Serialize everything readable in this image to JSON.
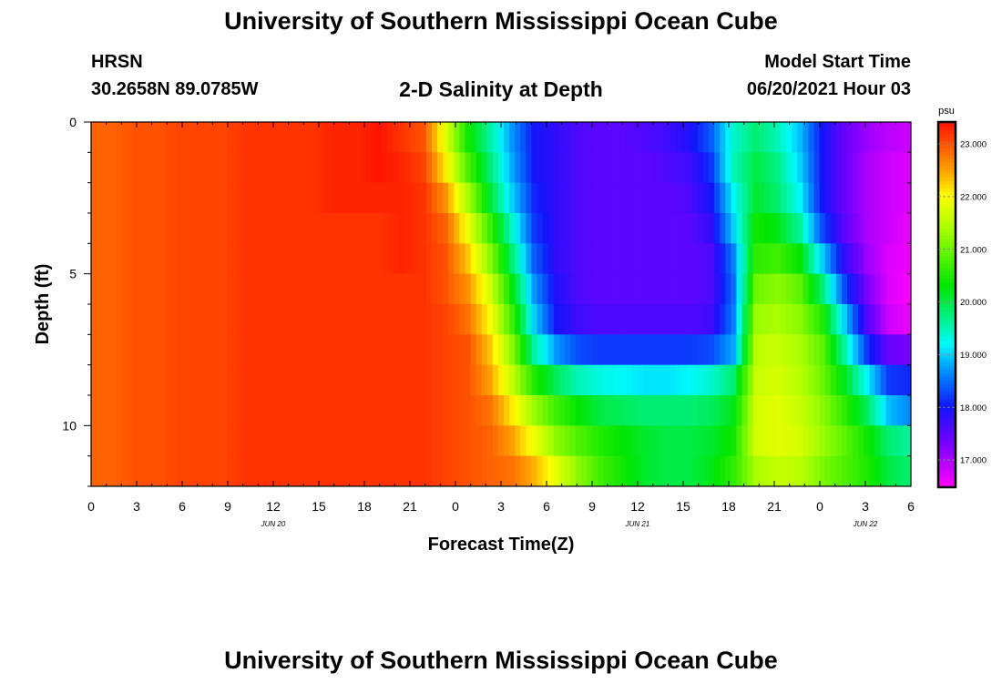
{
  "header": {
    "title_top": "University of Southern Mississippi Ocean Cube",
    "title_bottom": "University of Southern Mississippi Ocean Cube",
    "station": "HRSN",
    "coords": "30.2658N  89.0785W",
    "plot_title": "2-D Salinity at Depth",
    "model_label": "Model Start Time",
    "model_time": "06/20/2021 Hour 03"
  },
  "chart_data": {
    "type": "heatmap",
    "title": "2-D Salinity at Depth",
    "xlabel": "Forecast Time(Z)",
    "ylabel": "Depth (ft)",
    "x_hours": [
      0,
      54
    ],
    "ylim": [
      0,
      12
    ],
    "xticks": [
      "0",
      "3",
      "6",
      "9",
      "12",
      "15",
      "18",
      "21",
      "0",
      "3",
      "6",
      "9",
      "12",
      "15",
      "18",
      "21",
      "0",
      "3",
      "6"
    ],
    "date_labels": [
      {
        "hour": 12,
        "text": "JUN 20"
      },
      {
        "hour": 36,
        "text": "JUN 21"
      },
      {
        "hour": 51,
        "text": "JUN 22"
      }
    ],
    "yticks": [
      "0",
      "5",
      "10"
    ],
    "colorbar": {
      "unit": "psu",
      "min": 16.5,
      "max": 23.4,
      "ticks": [
        "23.000",
        "22.000",
        "21.000",
        "20.000",
        "19.000",
        "18.000",
        "17.000"
      ]
    },
    "depth_rows": [
      0.5,
      1.5,
      2.5,
      3.5,
      4.5,
      5.5,
      6.5,
      7.5,
      8.5,
      9.5,
      10.5,
      11.5
    ],
    "salinity_psu": [
      [
        22.9,
        22.9,
        23.0,
        23.0,
        23.1,
        23.1,
        23.1,
        23.2,
        23.2,
        23.2,
        23.2,
        23.3,
        23.3,
        23.4,
        23.2,
        23.0,
        21.8,
        20.4,
        19.6,
        18.7,
        18.0,
        17.8,
        17.6,
        17.5,
        17.5,
        17.6,
        17.7,
        17.9,
        18.4,
        19.4,
        19.8,
        19.5,
        18.9,
        18.0,
        17.4,
        17.1,
        16.9,
        16.8
      ],
      [
        22.9,
        22.9,
        23.0,
        23.0,
        23.1,
        23.1,
        23.1,
        23.2,
        23.2,
        23.2,
        23.2,
        23.3,
        23.3,
        23.4,
        23.3,
        23.1,
        22.1,
        20.8,
        19.8,
        18.8,
        18.0,
        17.8,
        17.6,
        17.5,
        17.5,
        17.5,
        17.6,
        17.7,
        18.2,
        19.5,
        20.0,
        19.7,
        19.0,
        18.0,
        17.4,
        17.0,
        16.8,
        16.7
      ],
      [
        22.9,
        22.9,
        23.0,
        23.0,
        23.1,
        23.1,
        23.1,
        23.2,
        23.2,
        23.2,
        23.2,
        23.3,
        23.3,
        23.3,
        23.3,
        23.2,
        22.6,
        21.4,
        20.1,
        19.0,
        18.1,
        17.8,
        17.6,
        17.5,
        17.5,
        17.5,
        17.5,
        17.6,
        18.0,
        19.2,
        20.1,
        19.8,
        19.2,
        18.0,
        17.4,
        17.0,
        16.8,
        16.7
      ],
      [
        22.9,
        22.9,
        23.0,
        23.0,
        23.1,
        23.1,
        23.1,
        23.2,
        23.2,
        23.2,
        23.2,
        23.2,
        23.2,
        23.2,
        23.3,
        23.2,
        22.9,
        21.9,
        20.7,
        19.4,
        18.2,
        17.8,
        17.6,
        17.5,
        17.5,
        17.5,
        17.5,
        17.5,
        17.8,
        19.0,
        20.4,
        20.2,
        19.6,
        18.3,
        17.5,
        17.0,
        16.8,
        16.6
      ],
      [
        22.9,
        22.9,
        23.0,
        23.0,
        23.1,
        23.1,
        23.1,
        23.2,
        23.2,
        23.2,
        23.2,
        23.2,
        23.2,
        23.2,
        23.3,
        23.2,
        23.0,
        22.3,
        21.2,
        19.8,
        18.4,
        17.8,
        17.6,
        17.5,
        17.5,
        17.5,
        17.5,
        17.5,
        17.6,
        18.6,
        20.6,
        20.7,
        20.3,
        19.0,
        17.8,
        17.1,
        16.7,
        16.6
      ],
      [
        22.9,
        22.9,
        23.0,
        23.0,
        23.1,
        23.1,
        23.1,
        23.2,
        23.2,
        23.2,
        23.2,
        23.2,
        23.2,
        23.2,
        23.2,
        23.2,
        23.0,
        22.6,
        21.7,
        20.3,
        18.7,
        17.9,
        17.6,
        17.5,
        17.5,
        17.5,
        17.5,
        17.5,
        17.6,
        18.5,
        21.0,
        21.2,
        20.9,
        19.8,
        18.3,
        17.3,
        16.7,
        16.5
      ],
      [
        22.9,
        22.9,
        23.0,
        23.0,
        23.1,
        23.1,
        23.1,
        23.2,
        23.2,
        23.2,
        23.2,
        23.2,
        23.2,
        23.2,
        23.2,
        23.2,
        23.1,
        22.8,
        22.0,
        20.7,
        19.0,
        18.0,
        17.7,
        17.6,
        17.6,
        17.6,
        17.6,
        17.6,
        17.7,
        18.6,
        21.3,
        21.4,
        21.2,
        20.5,
        19.0,
        17.6,
        16.8,
        16.6
      ],
      [
        22.9,
        22.9,
        23.0,
        23.0,
        23.1,
        23.1,
        23.1,
        23.2,
        23.2,
        23.2,
        23.2,
        23.2,
        23.2,
        23.2,
        23.2,
        23.2,
        23.1,
        23.0,
        22.3,
        21.2,
        19.6,
        18.7,
        18.3,
        18.2,
        18.2,
        18.2,
        18.2,
        18.2,
        18.3,
        18.8,
        21.5,
        21.6,
        21.4,
        20.9,
        19.6,
        18.2,
        17.4,
        17.3
      ],
      [
        22.9,
        22.9,
        23.0,
        23.0,
        23.1,
        23.1,
        23.1,
        23.2,
        23.2,
        23.2,
        23.2,
        23.2,
        23.2,
        23.2,
        23.2,
        23.2,
        23.1,
        23.0,
        22.5,
        21.6,
        20.5,
        19.9,
        19.5,
        19.3,
        19.2,
        19.1,
        19.1,
        19.2,
        19.4,
        19.8,
        21.6,
        21.7,
        21.5,
        21.0,
        20.2,
        19.2,
        18.2,
        18.1
      ],
      [
        22.9,
        22.9,
        23.0,
        23.0,
        23.1,
        23.1,
        23.1,
        23.2,
        23.2,
        23.2,
        23.2,
        23.2,
        23.2,
        23.2,
        23.2,
        23.2,
        23.1,
        23.0,
        22.8,
        22.1,
        21.3,
        20.7,
        20.3,
        20.0,
        19.9,
        19.8,
        19.8,
        19.8,
        19.9,
        20.2,
        21.7,
        21.8,
        21.6,
        21.2,
        20.6,
        19.9,
        18.9,
        18.6
      ],
      [
        22.9,
        22.9,
        23.0,
        23.0,
        23.1,
        23.1,
        23.1,
        23.2,
        23.2,
        23.2,
        23.2,
        23.2,
        23.2,
        23.2,
        23.2,
        23.2,
        23.1,
        23.0,
        22.9,
        22.5,
        21.9,
        21.2,
        20.8,
        20.5,
        20.3,
        20.1,
        20.0,
        20.0,
        20.1,
        20.4,
        21.7,
        21.8,
        21.7,
        21.3,
        20.9,
        20.4,
        19.8,
        19.6
      ],
      [
        22.9,
        22.9,
        23.0,
        23.0,
        23.1,
        23.1,
        23.1,
        23.2,
        23.2,
        23.2,
        23.2,
        23.2,
        23.2,
        23.2,
        23.2,
        23.2,
        23.1,
        23.0,
        22.9,
        22.8,
        22.4,
        21.8,
        21.2,
        20.7,
        20.4,
        20.1,
        20.0,
        20.0,
        20.2,
        20.6,
        21.4,
        21.6,
        21.5,
        21.1,
        20.8,
        20.5,
        20.0,
        19.8
      ]
    ]
  }
}
